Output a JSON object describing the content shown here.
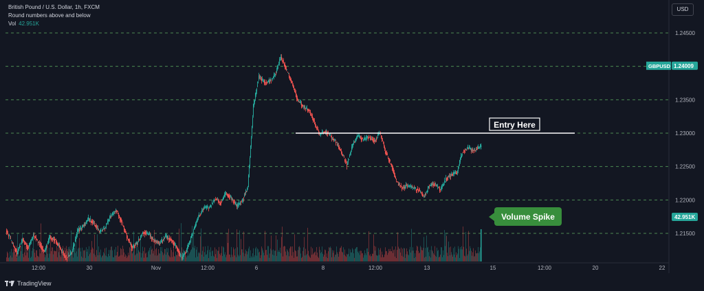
{
  "header": {
    "title": "British Pound / U.S. Dollar, 1h, FXCM",
    "indicator": "Round numbers above and below",
    "volume_label": "Vol",
    "volume_value": "42.951K"
  },
  "currency_button": "USD",
  "brand": "TradingView",
  "colors": {
    "up": "#26a69a",
    "down": "#ef5350",
    "background": "#131722",
    "grid": "#2a2e39",
    "round_line": "#4c8a52",
    "annotation_green": "#388e3c"
  },
  "chart_data": {
    "type": "candlestick",
    "symbol_label": "GBPUSD",
    "last_price": "1.24009",
    "volume_last": "42.951K",
    "ylim": [
      1.2105,
      1.2495
    ],
    "y_ticks": [
      "1.24500",
      "1.24000",
      "1.23500",
      "1.23000",
      "1.22500",
      "1.22000",
      "1.21500"
    ],
    "round_levels": [
      1.245,
      1.24,
      1.235,
      1.23,
      1.225,
      1.22,
      1.215
    ],
    "x_ticks": [
      "12:00",
      "30",
      "Nov",
      "12:00",
      "6",
      "8",
      "12:00",
      "13",
      "15",
      "12:00",
      "20",
      "22"
    ],
    "close_path": [
      [
        0,
        1.2155
      ],
      [
        8,
        1.2138
      ],
      [
        16,
        1.212
      ],
      [
        24,
        1.2142
      ],
      [
        32,
        1.2128
      ],
      [
        40,
        1.2148
      ],
      [
        48,
        1.2135
      ],
      [
        56,
        1.2122
      ],
      [
        64,
        1.2145
      ],
      [
        72,
        1.2139
      ],
      [
        80,
        1.2126
      ],
      [
        88,
        1.2112
      ],
      [
        96,
        1.2122
      ],
      [
        104,
        1.2153
      ],
      [
        112,
        1.216
      ],
      [
        120,
        1.2172
      ],
      [
        128,
        1.2165
      ],
      [
        136,
        1.2152
      ],
      [
        144,
        1.2158
      ],
      [
        152,
        1.2175
      ],
      [
        160,
        1.2185
      ],
      [
        168,
        1.2168
      ],
      [
        176,
        1.2145
      ],
      [
        184,
        1.2128
      ],
      [
        192,
        1.2138
      ],
      [
        200,
        1.2152
      ],
      [
        208,
        1.2148
      ],
      [
        216,
        1.2138
      ],
      [
        224,
        1.2135
      ],
      [
        232,
        1.2145
      ],
      [
        240,
        1.2141
      ],
      [
        248,
        1.2129
      ],
      [
        256,
        1.2113
      ],
      [
        264,
        1.2127
      ],
      [
        272,
        1.2152
      ],
      [
        280,
        1.2175
      ],
      [
        288,
        1.2188
      ],
      [
        296,
        1.2188
      ],
      [
        304,
        1.2202
      ],
      [
        312,
        1.2195
      ],
      [
        320,
        1.221
      ],
      [
        328,
        1.2203
      ],
      [
        336,
        1.219
      ],
      [
        344,
        1.2199
      ],
      [
        352,
        1.222
      ],
      [
        360,
        1.2341
      ],
      [
        368,
        1.2385
      ],
      [
        376,
        1.2376
      ],
      [
        384,
        1.2378
      ],
      [
        392,
        1.2388
      ],
      [
        400,
        1.2415
      ],
      [
        408,
        1.2395
      ],
      [
        416,
        1.2375
      ],
      [
        424,
        1.235
      ],
      [
        432,
        1.234
      ],
      [
        440,
        1.2335
      ],
      [
        448,
        1.2318
      ],
      [
        456,
        1.2298
      ],
      [
        464,
        1.2302
      ],
      [
        472,
        1.2296
      ],
      [
        480,
        1.2286
      ],
      [
        488,
        1.2272
      ],
      [
        496,
        1.2252
      ],
      [
        504,
        1.2282
      ],
      [
        512,
        1.2296
      ],
      [
        520,
        1.229
      ],
      [
        528,
        1.2294
      ],
      [
        536,
        1.2288
      ],
      [
        544,
        1.2301
      ],
      [
        552,
        1.2272
      ],
      [
        560,
        1.2254
      ],
      [
        568,
        1.2228
      ],
      [
        576,
        1.2218
      ],
      [
        584,
        1.2221
      ],
      [
        592,
        1.2218
      ],
      [
        600,
        1.2215
      ],
      [
        608,
        1.2205
      ],
      [
        616,
        1.2221
      ],
      [
        624,
        1.2224
      ],
      [
        632,
        1.2215
      ],
      [
        640,
        1.2231
      ],
      [
        648,
        1.2238
      ],
      [
        656,
        1.2241
      ],
      [
        664,
        1.2272
      ],
      [
        672,
        1.2278
      ],
      [
        680,
        1.2274
      ],
      [
        688,
        1.2278
      ],
      [
        696,
        1.2292
      ],
      [
        698,
        1.2401
      ]
    ],
    "candle_noise": 0.0006,
    "volume": {
      "max_millions": 0.6,
      "spike_value": 0.47
    },
    "annotations": [
      {
        "label": "Entry Here",
        "price": 1.23,
        "x0": 430,
        "x1": 836
      },
      {
        "label": "Volume Spike"
      }
    ]
  }
}
